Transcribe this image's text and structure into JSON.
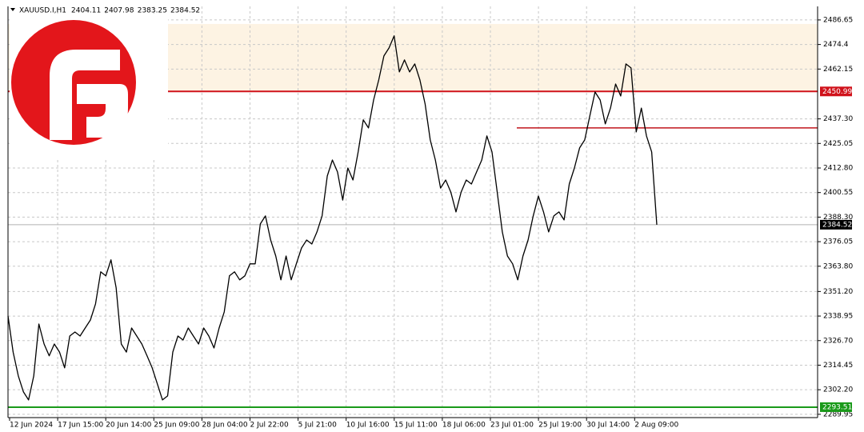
{
  "chart_data": {
    "type": "line",
    "symbol": "XAUUSD.I,H1",
    "ohlc": [
      2404.11,
      2407.98,
      2383.25,
      2384.52
    ],
    "color": "#000000",
    "grid": true,
    "ylim": [
      2288.3,
      2493.4
    ],
    "yticks": [
      2486.65,
      2474.4,
      2462.15,
      {
        "value": 2437.3,
        "label": "2437.30"
      },
      2425.05,
      {
        "value": 2412.8,
        "label": "2412.80"
      },
      2400.55,
      {
        "value": 2388.3,
        "label": "2388.30"
      },
      2376.05,
      {
        "value": 2363.8,
        "label": "2363.80"
      },
      {
        "value": 2351.2,
        "label": "2351.20"
      },
      2338.95,
      {
        "value": 2326.7,
        "label": "2326.70"
      },
      2314.45,
      {
        "value": 2302.2,
        "label": "2302.20"
      },
      2289.95
    ],
    "x_labels": [
      "12 Jun 2024",
      "17 Jun 15:00",
      "20 Jun 14:00",
      "25 Jun 09:00",
      "28 Jun 04:00",
      "2 Jul 22:00",
      "5 Jul 21:00",
      "10 Jul 16:00",
      "15 Jul 11:00",
      "18 Jul 06:00",
      "23 Jul 01:00",
      "25 Jul 19:00",
      "30 Jul 14:00",
      "2 Aug 09:00"
    ],
    "zone": {
      "from": 2450.99,
      "to": 2484.65,
      "color": "#fdf3e3"
    },
    "levels": [
      {
        "value": 2450.99,
        "color": "#d0121b",
        "text_color": "#ffffff"
      },
      {
        "value": 2384.52,
        "color": "#b0b0b0",
        "label_color": "#000000",
        "text_color": "#ffffff"
      },
      {
        "value": 2293.51,
        "color": "#1a9a1a",
        "text_color": "#ffffff"
      }
    ],
    "short_level": {
      "value": 2432.78,
      "color": "#c0141c"
    },
    "values": [
      2339.0,
      2321.0,
      2309.1,
      2301.1,
      2297.1,
      2309.1,
      2335.0,
      2325.0,
      2319.1,
      2325.0,
      2321.0,
      2313.1,
      2329.0,
      2331.0,
      2329.0,
      2333.0,
      2337.0,
      2345.0,
      2361.0,
      2359.0,
      2367.0,
      2353.0,
      2325.0,
      2321.0,
      2333.0,
      2329.0,
      2325.0,
      2319.1,
      2313.1,
      2305.1,
      2297.1,
      2299.1,
      2321.0,
      2329.0,
      2327.0,
      2333.0,
      2329.0,
      2325.0,
      2333.0,
      2329.0,
      2323.0,
      2333.0,
      2341.0,
      2359.0,
      2361.0,
      2357.0,
      2359.0,
      2365.0,
      2365.0,
      2384.9,
      2388.9,
      2376.9,
      2368.9,
      2357.0,
      2368.9,
      2357.0,
      2365.0,
      2372.9,
      2376.9,
      2374.9,
      2380.9,
      2388.9,
      2408.8,
      2416.8,
      2410.8,
      2396.8,
      2412.8,
      2406.8,
      2420.8,
      2436.8,
      2432.8,
      2446.7,
      2456.7,
      2468.7,
      2472.7,
      2478.7,
      2460.7,
      2466.7,
      2460.7,
      2464.7,
      2456.7,
      2444.7,
      2426.8,
      2416.8,
      2402.8,
      2406.8,
      2400.8,
      2390.9,
      2400.8,
      2406.8,
      2404.8,
      2410.8,
      2416.8,
      2428.8,
      2420.8,
      2400.8,
      2380.9,
      2368.9,
      2365.0,
      2357.0,
      2368.9,
      2376.9,
      2388.9,
      2398.8,
      2390.9,
      2380.9,
      2388.9,
      2390.9,
      2386.9,
      2404.8,
      2412.8,
      2422.8,
      2426.8,
      2438.8,
      2450.7,
      2446.7,
      2434.8,
      2442.7,
      2454.7,
      2448.7,
      2464.7,
      2462.7,
      2430.8,
      2442.7,
      2428.8,
      2420.8,
      2384.52
    ]
  }
}
